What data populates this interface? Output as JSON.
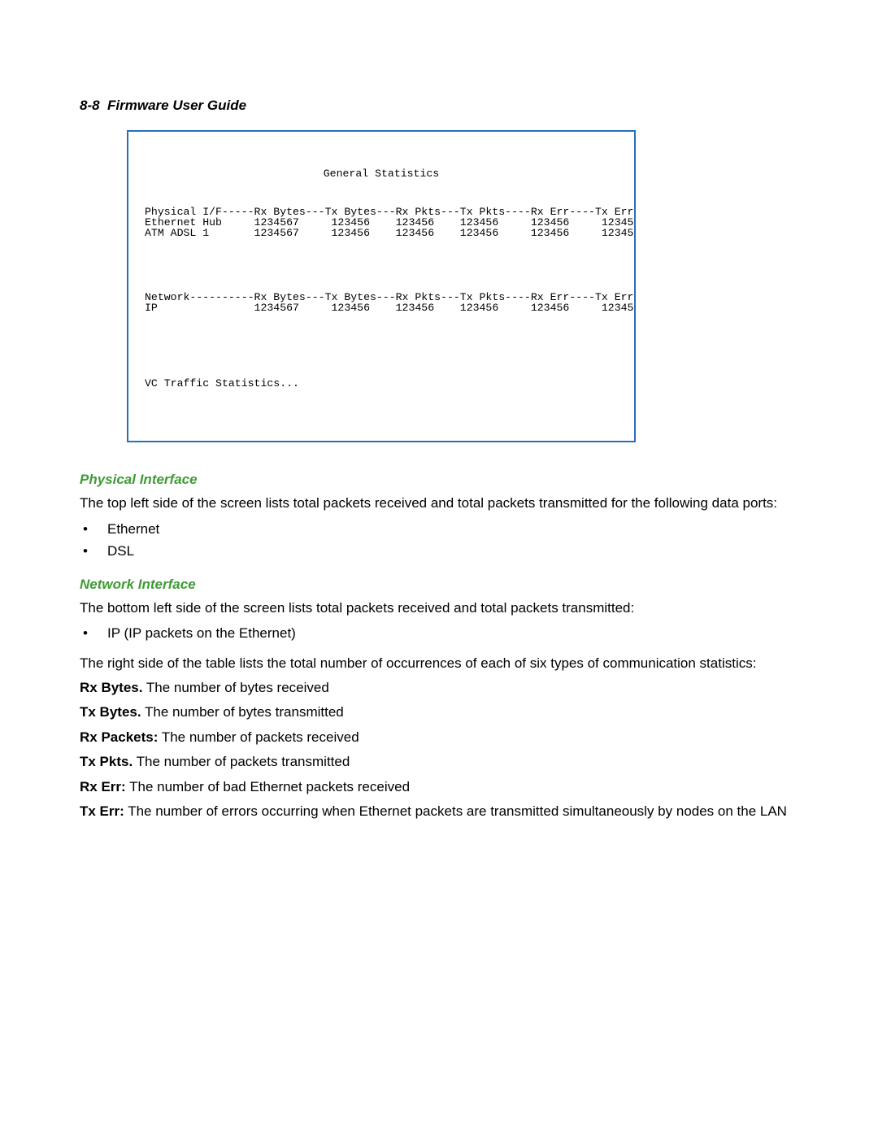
{
  "header": {
    "page_number": "8-8",
    "title": "Firmware User Guide"
  },
  "terminal": {
    "title": "General Statistics",
    "colors": {
      "border": "#2a6fb9",
      "text": "#000000"
    },
    "physical_header": "Physical I/F-----Rx Bytes---Tx Bytes---Rx Pkts---Tx Pkts----Rx Err----Tx Err",
    "physical_rows": [
      {
        "name": "Ethernet Hub",
        "rx_bytes": "1234567",
        "tx_bytes": "123456",
        "rx_pkts": "123456",
        "tx_pkts": "123456",
        "rx_err": "123456",
        "tx_err": "12345"
      },
      {
        "name": "ATM ADSL 1",
        "rx_bytes": "1234567",
        "tx_bytes": "123456",
        "rx_pkts": "123456",
        "tx_pkts": "123456",
        "rx_err": "123456",
        "tx_err": "12345"
      }
    ],
    "network_header": "Network----------Rx Bytes---Tx Bytes---Rx Pkts---Tx Pkts----Rx Err----Tx Err",
    "network_rows": [
      {
        "name": "IP",
        "rx_bytes": "1234567",
        "tx_bytes": "123456",
        "rx_pkts": "123456",
        "tx_pkts": "123456",
        "rx_err": "123456",
        "tx_err": "12345"
      }
    ],
    "vc_label": "VC Traffic Statistics..."
  },
  "sections": {
    "physical": {
      "heading": "Physical Interface",
      "intro": "The top left side of the screen lists total packets received and total packets transmitted for the following data ports:",
      "items": [
        "Ethernet",
        "DSL"
      ]
    },
    "network": {
      "heading": "Network Interface",
      "intro": "The bottom left side of the screen lists total packets received and total packets transmitted:",
      "items": [
        "IP (IP packets on the Ethernet)"
      ],
      "right_side": "The right side of the table lists the total number of occurrences of each of six types of communication statistics:"
    },
    "defs": {
      "rx_bytes": {
        "label": "Rx Bytes.",
        "text": " The number of bytes received"
      },
      "tx_bytes": {
        "label": "Tx Bytes.",
        "text": " The number of bytes transmitted"
      },
      "rx_packets": {
        "label": "Rx Packets:",
        "text": " The number of packets received"
      },
      "tx_pkts": {
        "label": "Tx Pkts.",
        "text": " The number of packets transmitted"
      },
      "rx_err": {
        "label": "Rx Err:",
        "text": "  The number of bad Ethernet packets received"
      },
      "tx_err": {
        "label": "Tx Err:",
        "text": " The number of errors occurring when Ethernet packets are transmitted simultaneously by nodes on the LAN"
      }
    }
  },
  "colors": {
    "heading_green": "#3e9b35",
    "frame_blue": "#2a6fb9",
    "body_text": "#000000"
  }
}
